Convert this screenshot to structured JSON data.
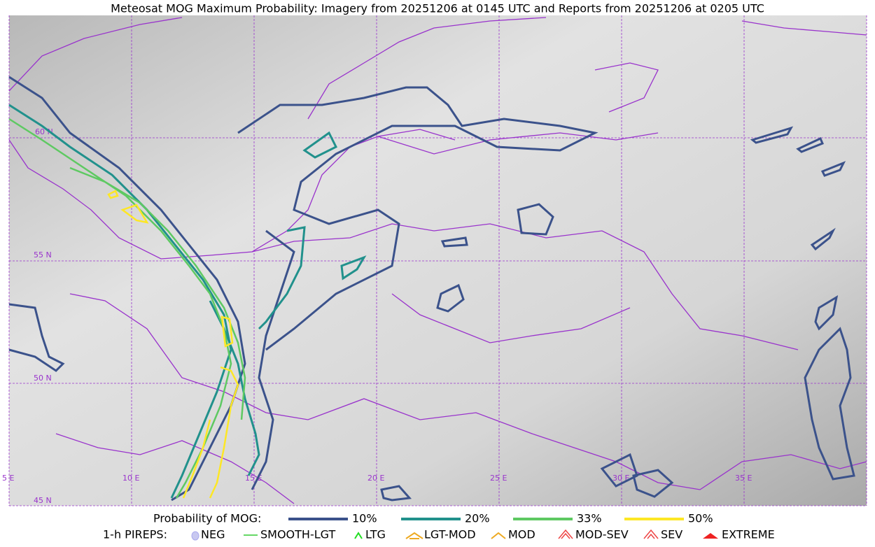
{
  "title": "Meteosat MOG Maximum Probability: Imagery from 20251206 at 0145 UTC and Reports from 20251206 at 0205 UTC",
  "map": {
    "lat_labels": [
      "60 N",
      "55 N",
      "50 N",
      "45 N"
    ],
    "lon_labels": [
      "5 E",
      "10 E",
      "15 E",
      "20 E",
      "25 E",
      "30 E",
      "35 E"
    ]
  },
  "legend": {
    "title": "Probability of MOG:",
    "items": [
      {
        "label": "10%",
        "color": "#3b528b"
      },
      {
        "label": "20%",
        "color": "#21918c"
      },
      {
        "label": "33%",
        "color": "#5ec962"
      },
      {
        "label": "50%",
        "color": "#fde725"
      }
    ]
  },
  "pireps": {
    "title": "1-h PIREPS:",
    "items": [
      "NEG",
      "SMOOTH-LGT",
      "LTG",
      "LGT-MOD",
      "MOD",
      "MOD-SEV",
      "SEV",
      "EXTREME"
    ]
  }
}
